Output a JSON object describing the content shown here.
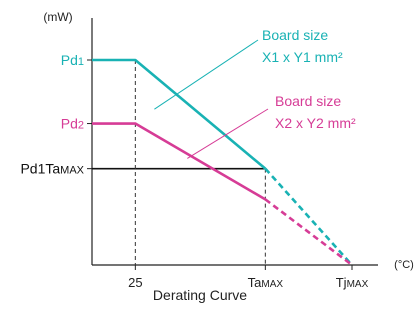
{
  "chart_data": {
    "type": "line",
    "title": "Derating Curve",
    "ylabel": "(mW)",
    "xlabel": "(°C)",
    "x_ticks": [
      {
        "label": "25",
        "x": 25
      },
      {
        "label": "Ta",
        "sub": "MAX",
        "x": 100
      },
      {
        "label": "Tj",
        "sub": "MAX",
        "x": 150
      }
    ],
    "y_ticks": [
      {
        "label": "Pd",
        "sub": "1",
        "color": "#19b2b4",
        "y": 100
      },
      {
        "label": "Pd",
        "sub": "2",
        "color": "#d63c96",
        "y": 69
      },
      {
        "label": "Pd1Ta",
        "sub": "MAX",
        "color": "#111111",
        "y": 47
      }
    ],
    "series": [
      {
        "name": "Board size X1 x Y1 mm²",
        "color": "#19b2b4",
        "points": [
          [
            0,
            100
          ],
          [
            25,
            100
          ],
          [
            100,
            47
          ],
          [
            150,
            0
          ]
        ],
        "dashed_from_x": 100
      },
      {
        "name": "Board size X2 x Y2 mm²",
        "color": "#d63c96",
        "points": [
          [
            0,
            69
          ],
          [
            25,
            69
          ],
          [
            100,
            32
          ],
          [
            150,
            0
          ]
        ],
        "dashed_from_x": 100
      }
    ],
    "annotations": [
      {
        "line1": "Board size",
        "line2": "X1 x Y1 mm²",
        "color": "#19b2b4"
      },
      {
        "line1": "Board size",
        "line2": "X2 x Y2 mm²",
        "color": "#d63c96"
      }
    ],
    "xlim": [
      0,
      150
    ],
    "ylim": [
      0,
      100
    ],
    "grid": false,
    "background_color": "#ffffff"
  }
}
